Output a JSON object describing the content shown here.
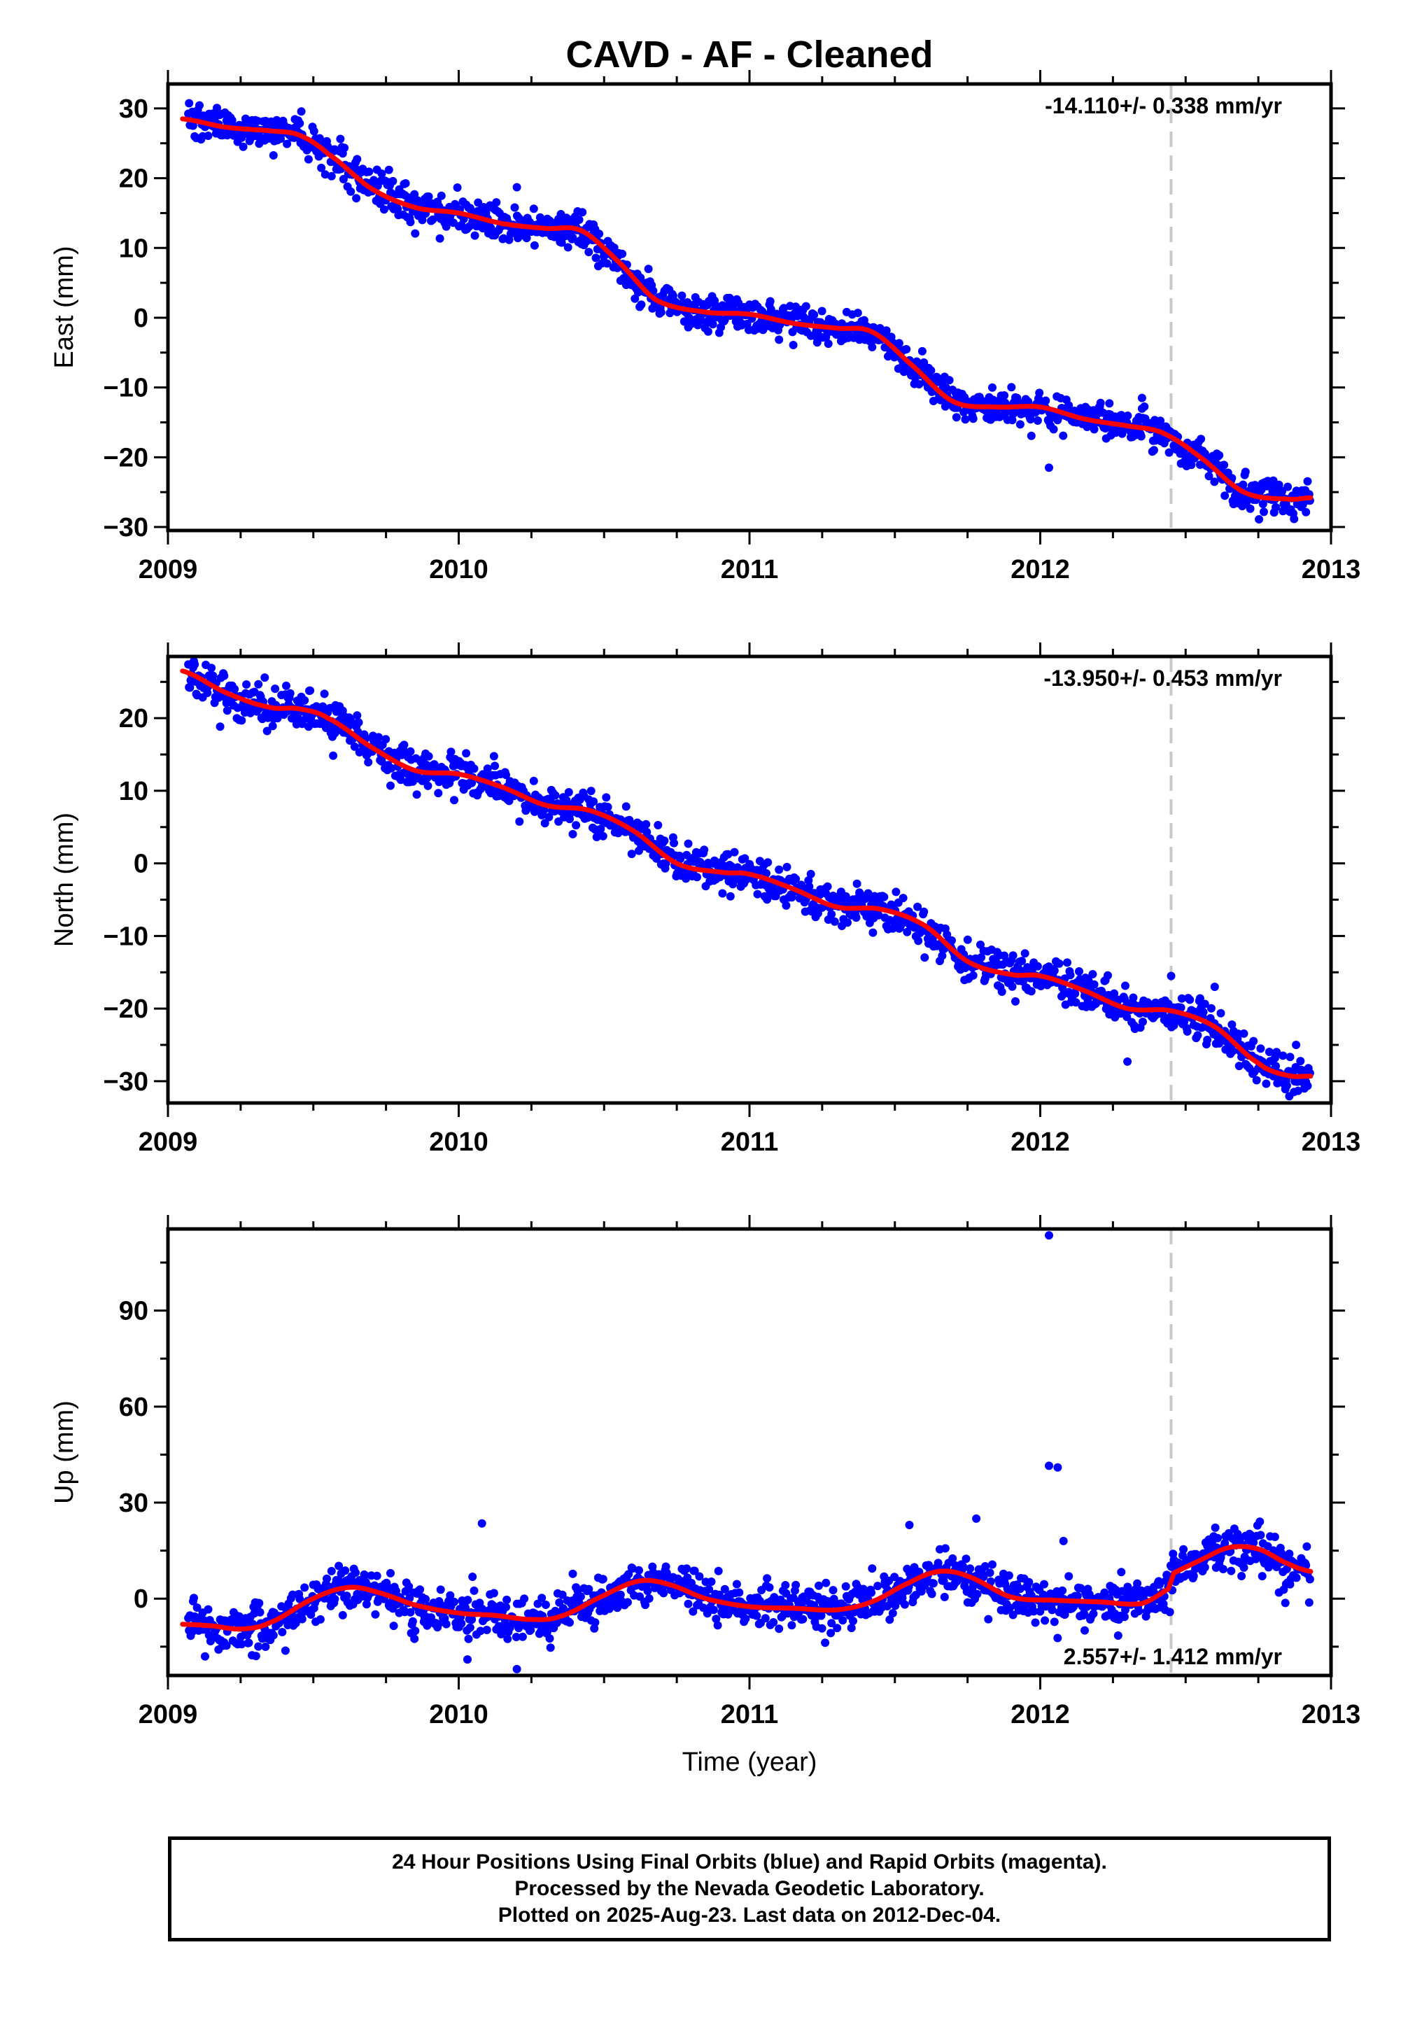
{
  "title": "CAVD  - AF - Cleaned",
  "colors": {
    "final_orbits": "#0000ff",
    "model_fit": "#ff0000",
    "event_line": "#c8c8c8",
    "frame": "#000000",
    "text": "#000000"
  },
  "chart_data": [
    {
      "type": "scatter",
      "component": "east",
      "ylabel": "East (mm)",
      "xlabel": "",
      "xlim": [
        2009.0,
        2013.0
      ],
      "ylim": [
        -30.5,
        33.5
      ],
      "xticks": [
        2009,
        2010,
        2011,
        2012,
        2013
      ],
      "yticks": [
        -30,
        -20,
        -10,
        0,
        10,
        20,
        30
      ],
      "grid": false,
      "rate_label": "-14.110+/- 0.338 mm/yr",
      "rate_label_position": "top-right",
      "event_line_x": 2012.45,
      "data_range": [
        2009.07,
        2012.93
      ],
      "fit_points": [
        [
          2009.05,
          28.5
        ],
        [
          2009.2,
          27.3
        ],
        [
          2009.35,
          26.8
        ],
        [
          2009.45,
          26.2
        ],
        [
          2009.55,
          23.5
        ],
        [
          2009.7,
          18.5
        ],
        [
          2009.85,
          15.8
        ],
        [
          2010.0,
          15.0
        ],
        [
          2010.15,
          13.5
        ],
        [
          2010.3,
          12.8
        ],
        [
          2010.42,
          12.5
        ],
        [
          2010.55,
          8.0
        ],
        [
          2010.68,
          2.5
        ],
        [
          2010.85,
          0.8
        ],
        [
          2011.0,
          0.5
        ],
        [
          2011.15,
          -0.8
        ],
        [
          2011.3,
          -1.5
        ],
        [
          2011.42,
          -2.0
        ],
        [
          2011.55,
          -6.5
        ],
        [
          2011.7,
          -12.0
        ],
        [
          2011.85,
          -12.8
        ],
        [
          2012.0,
          -12.8
        ],
        [
          2012.15,
          -14.5
        ],
        [
          2012.3,
          -15.5
        ],
        [
          2012.42,
          -16.5
        ],
        [
          2012.55,
          -20.0
        ],
        [
          2012.7,
          -25.0
        ],
        [
          2012.85,
          -26.0
        ],
        [
          2012.93,
          -25.8
        ]
      ],
      "noise_sd": 1.3,
      "outliers": [
        [
          2012.03,
          -21.5
        ],
        [
          2010.2,
          18.7
        ],
        [
          2012.35,
          -11.5
        ]
      ],
      "series": [
        {
          "name": "Final Orbits (blue)"
        },
        {
          "name": "fit"
        }
      ]
    },
    {
      "type": "scatter",
      "component": "north",
      "ylabel": "North (mm)",
      "xlabel": "",
      "xlim": [
        2009.0,
        2013.0
      ],
      "ylim": [
        -33.0,
        28.5
      ],
      "xticks": [
        2009,
        2010,
        2011,
        2012,
        2013
      ],
      "yticks": [
        -30,
        -20,
        -10,
        0,
        10,
        20
      ],
      "grid": false,
      "rate_label": "-13.950+/- 0.453 mm/yr",
      "rate_label_position": "top-right",
      "event_line_x": 2012.45,
      "data_range": [
        2009.07,
        2012.93
      ],
      "fit_points": [
        [
          2009.05,
          26.5
        ],
        [
          2009.2,
          23.5
        ],
        [
          2009.35,
          21.5
        ],
        [
          2009.45,
          21.3
        ],
        [
          2009.55,
          20.0
        ],
        [
          2009.7,
          16.0
        ],
        [
          2009.85,
          12.8
        ],
        [
          2010.0,
          12.3
        ],
        [
          2010.15,
          10.5
        ],
        [
          2010.3,
          8.0
        ],
        [
          2010.45,
          7.3
        ],
        [
          2010.6,
          4.5
        ],
        [
          2010.75,
          0.0
        ],
        [
          2010.9,
          -1.2
        ],
        [
          2011.0,
          -1.5
        ],
        [
          2011.15,
          -3.5
        ],
        [
          2011.3,
          -6.0
        ],
        [
          2011.45,
          -6.3
        ],
        [
          2011.6,
          -8.5
        ],
        [
          2011.75,
          -13.5
        ],
        [
          2011.9,
          -15.3
        ],
        [
          2012.0,
          -15.5
        ],
        [
          2012.15,
          -17.5
        ],
        [
          2012.3,
          -20.0
        ],
        [
          2012.45,
          -20.3
        ],
        [
          2012.6,
          -22.5
        ],
        [
          2012.75,
          -27.5
        ],
        [
          2012.85,
          -29.2
        ],
        [
          2012.93,
          -29.3
        ]
      ],
      "noise_sd": 1.3,
      "outliers": [
        [
          2012.3,
          -27.3
        ],
        [
          2012.45,
          -15.5
        ],
        [
          2012.6,
          -17.0
        ],
        [
          2012.88,
          -25.0
        ]
      ],
      "series": [
        {
          "name": "Final Orbits (blue)"
        },
        {
          "name": "fit"
        }
      ]
    },
    {
      "type": "scatter",
      "component": "up",
      "ylabel": "Up (mm)",
      "xlabel": "Time (year)",
      "xlim": [
        2009.0,
        2013.0
      ],
      "ylim": [
        -24.0,
        115.5
      ],
      "xticks": [
        2009,
        2010,
        2011,
        2012,
        2013
      ],
      "yticks": [
        0,
        30,
        60,
        90
      ],
      "grid": false,
      "rate_label": "2.557+/- 1.412 mm/yr",
      "rate_label_position": "bottom-right",
      "event_line_x": 2012.45,
      "data_range": [
        2009.07,
        2012.93
      ],
      "fit_points": [
        [
          2009.05,
          -8.0
        ],
        [
          2009.15,
          -8.5
        ],
        [
          2009.25,
          -9.5
        ],
        [
          2009.35,
          -7.5
        ],
        [
          2009.5,
          0.0
        ],
        [
          2009.62,
          3.5
        ],
        [
          2009.72,
          2.0
        ],
        [
          2009.85,
          -2.0
        ],
        [
          2010.0,
          -4.5
        ],
        [
          2010.12,
          -5.2
        ],
        [
          2010.25,
          -6.5
        ],
        [
          2010.35,
          -5.5
        ],
        [
          2010.5,
          1.0
        ],
        [
          2010.62,
          5.5
        ],
        [
          2010.72,
          4.5
        ],
        [
          2010.85,
          0.0
        ],
        [
          2011.0,
          -2.5
        ],
        [
          2011.15,
          -3.0
        ],
        [
          2011.3,
          -3.5
        ],
        [
          2011.42,
          -1.0
        ],
        [
          2011.55,
          5.0
        ],
        [
          2011.65,
          8.5
        ],
        [
          2011.75,
          7.0
        ],
        [
          2011.9,
          0.5
        ],
        [
          2012.05,
          -0.5
        ],
        [
          2012.2,
          -1.0
        ],
        [
          2012.35,
          -1.5
        ],
        [
          2012.44,
          3.0
        ],
        [
          2012.46,
          8.0
        ],
        [
          2012.55,
          12.0
        ],
        [
          2012.65,
          16.0
        ],
        [
          2012.75,
          15.5
        ],
        [
          2012.85,
          11.0
        ],
        [
          2012.93,
          8.5
        ]
      ],
      "noise_sd": 3.6,
      "outliers": [
        [
          2012.03,
          113.5
        ],
        [
          2012.03,
          41.5
        ],
        [
          2012.06,
          41.0
        ],
        [
          2010.08,
          23.5
        ],
        [
          2011.78,
          25.0
        ],
        [
          2011.55,
          23.0
        ],
        [
          2012.08,
          18.0
        ],
        [
          2010.2,
          -22.0
        ],
        [
          2010.03,
          -19.0
        ]
      ],
      "series": [
        {
          "name": "Final Orbits (blue)"
        },
        {
          "name": "fit"
        }
      ]
    }
  ],
  "footer": {
    "line1": "24 Hour Positions Using Final Orbits (blue) and Rapid Orbits (magenta).",
    "line2": "Processed by the Nevada Geodetic Laboratory.",
    "line3": "Plotted on 2025-Aug-23. Last data on 2012-Dec-04."
  }
}
